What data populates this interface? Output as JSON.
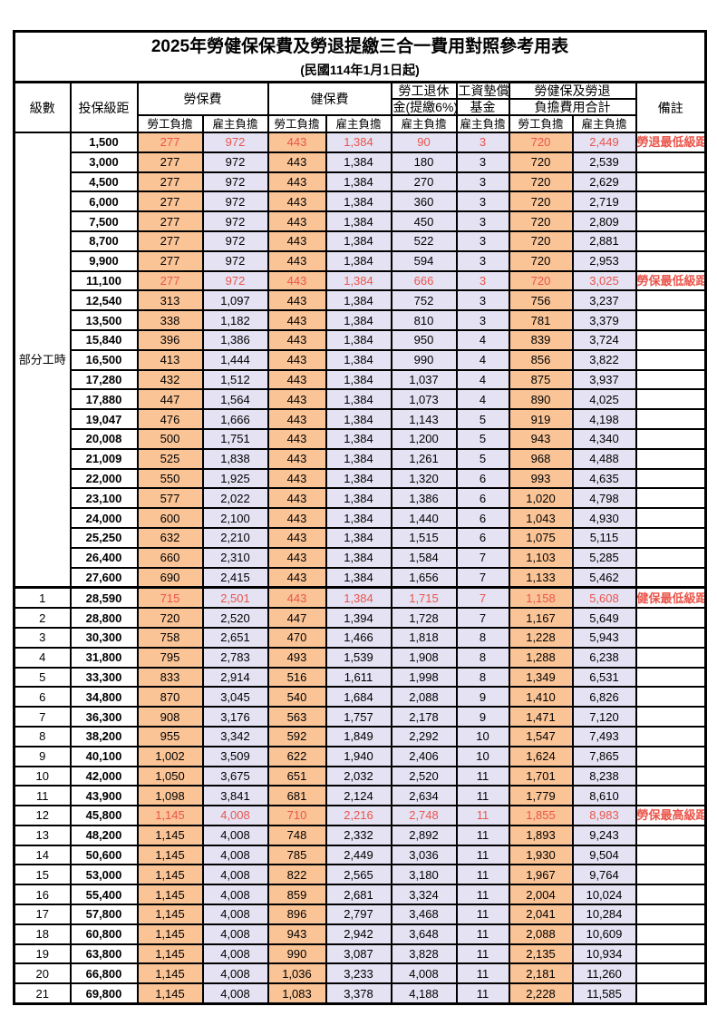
{
  "title": "2025年勞健保保費及勞退提繳三合一費用對照參考用表",
  "subtitle": "(民國114年1月1日起)",
  "colors": {
    "employee_bg": "#FAC496",
    "employer_bg": "#E4E2F3",
    "highlight_red": "#EB554B",
    "border": "#000000"
  },
  "header": {
    "level": "級數",
    "bracket": "投保級距",
    "labor_insurance": "勞保費",
    "health_insurance": "健保費",
    "pension_top": "勞工退休",
    "pension_bottom": "金(提繳6%)",
    "wage_fund_top": "工資墊償",
    "wage_fund_bottom": "基金",
    "total_top": "勞健保及勞退",
    "total_bottom": "負擔費用合計",
    "remark": "備註",
    "employee": "勞工負擔",
    "employer": "雇主負擔"
  },
  "part_time_label": "部分工時",
  "value_col_classes": [
    "emp",
    "er",
    "emp",
    "er",
    "er",
    "er",
    "emp",
    "er"
  ],
  "rows": [
    {
      "level": "",
      "bracket": "1,500",
      "v": [
        "277",
        "972",
        "443",
        "1,384",
        "90",
        "3",
        "720",
        "2,449"
      ],
      "remark": "勞退最低級距",
      "red": true
    },
    {
      "level": "",
      "bracket": "3,000",
      "v": [
        "277",
        "972",
        "443",
        "1,384",
        "180",
        "3",
        "720",
        "2,539"
      ],
      "remark": "",
      "red": false
    },
    {
      "level": "",
      "bracket": "4,500",
      "v": [
        "277",
        "972",
        "443",
        "1,384",
        "270",
        "3",
        "720",
        "2,629"
      ],
      "remark": "",
      "red": false
    },
    {
      "level": "",
      "bracket": "6,000",
      "v": [
        "277",
        "972",
        "443",
        "1,384",
        "360",
        "3",
        "720",
        "2,719"
      ],
      "remark": "",
      "red": false
    },
    {
      "level": "",
      "bracket": "7,500",
      "v": [
        "277",
        "972",
        "443",
        "1,384",
        "450",
        "3",
        "720",
        "2,809"
      ],
      "remark": "",
      "red": false
    },
    {
      "level": "",
      "bracket": "8,700",
      "v": [
        "277",
        "972",
        "443",
        "1,384",
        "522",
        "3",
        "720",
        "2,881"
      ],
      "remark": "",
      "red": false
    },
    {
      "level": "",
      "bracket": "9,900",
      "v": [
        "277",
        "972",
        "443",
        "1,384",
        "594",
        "3",
        "720",
        "2,953"
      ],
      "remark": "",
      "red": false
    },
    {
      "level": "",
      "bracket": "11,100",
      "v": [
        "277",
        "972",
        "443",
        "1,384",
        "666",
        "3",
        "720",
        "3,025"
      ],
      "remark": "勞保最低級距",
      "red": true
    },
    {
      "level": "",
      "bracket": "12,540",
      "v": [
        "313",
        "1,097",
        "443",
        "1,384",
        "752",
        "3",
        "756",
        "3,237"
      ],
      "remark": "",
      "red": false
    },
    {
      "level": "",
      "bracket": "13,500",
      "v": [
        "338",
        "1,182",
        "443",
        "1,384",
        "810",
        "3",
        "781",
        "3,379"
      ],
      "remark": "",
      "red": false
    },
    {
      "level": "",
      "bracket": "15,840",
      "v": [
        "396",
        "1,386",
        "443",
        "1,384",
        "950",
        "4",
        "839",
        "3,724"
      ],
      "remark": "",
      "red": false
    },
    {
      "level": "",
      "bracket": "16,500",
      "v": [
        "413",
        "1,444",
        "443",
        "1,384",
        "990",
        "4",
        "856",
        "3,822"
      ],
      "remark": "",
      "red": false
    },
    {
      "level": "",
      "bracket": "17,280",
      "v": [
        "432",
        "1,512",
        "443",
        "1,384",
        "1,037",
        "4",
        "875",
        "3,937"
      ],
      "remark": "",
      "red": false
    },
    {
      "level": "",
      "bracket": "17,880",
      "v": [
        "447",
        "1,564",
        "443",
        "1,384",
        "1,073",
        "4",
        "890",
        "4,025"
      ],
      "remark": "",
      "red": false
    },
    {
      "level": "",
      "bracket": "19,047",
      "v": [
        "476",
        "1,666",
        "443",
        "1,384",
        "1,143",
        "5",
        "919",
        "4,198"
      ],
      "remark": "",
      "red": false
    },
    {
      "level": "",
      "bracket": "20,008",
      "v": [
        "500",
        "1,751",
        "443",
        "1,384",
        "1,200",
        "5",
        "943",
        "4,340"
      ],
      "remark": "",
      "red": false
    },
    {
      "level": "",
      "bracket": "21,009",
      "v": [
        "525",
        "1,838",
        "443",
        "1,384",
        "1,261",
        "5",
        "968",
        "4,488"
      ],
      "remark": "",
      "red": false
    },
    {
      "level": "",
      "bracket": "22,000",
      "v": [
        "550",
        "1,925",
        "443",
        "1,384",
        "1,320",
        "6",
        "993",
        "4,635"
      ],
      "remark": "",
      "red": false
    },
    {
      "level": "",
      "bracket": "23,100",
      "v": [
        "577",
        "2,022",
        "443",
        "1,384",
        "1,386",
        "6",
        "1,020",
        "4,798"
      ],
      "remark": "",
      "red": false
    },
    {
      "level": "",
      "bracket": "24,000",
      "v": [
        "600",
        "2,100",
        "443",
        "1,384",
        "1,440",
        "6",
        "1,043",
        "4,930"
      ],
      "remark": "",
      "red": false
    },
    {
      "level": "",
      "bracket": "25,250",
      "v": [
        "632",
        "2,210",
        "443",
        "1,384",
        "1,515",
        "6",
        "1,075",
        "5,115"
      ],
      "remark": "",
      "red": false
    },
    {
      "level": "",
      "bracket": "26,400",
      "v": [
        "660",
        "2,310",
        "443",
        "1,384",
        "1,584",
        "7",
        "1,103",
        "5,285"
      ],
      "remark": "",
      "red": false
    },
    {
      "level": "",
      "bracket": "27,600",
      "v": [
        "690",
        "2,415",
        "443",
        "1,384",
        "1,656",
        "7",
        "1,133",
        "5,462"
      ],
      "remark": "",
      "red": false
    },
    {
      "level": "1",
      "bracket": "28,590",
      "v": [
        "715",
        "2,501",
        "443",
        "1,384",
        "1,715",
        "7",
        "1,158",
        "5,608"
      ],
      "remark": "健保最低級距",
      "red": true
    },
    {
      "level": "2",
      "bracket": "28,800",
      "v": [
        "720",
        "2,520",
        "447",
        "1,394",
        "1,728",
        "7",
        "1,167",
        "5,649"
      ],
      "remark": "",
      "red": false
    },
    {
      "level": "3",
      "bracket": "30,300",
      "v": [
        "758",
        "2,651",
        "470",
        "1,466",
        "1,818",
        "8",
        "1,228",
        "5,943"
      ],
      "remark": "",
      "red": false
    },
    {
      "level": "4",
      "bracket": "31,800",
      "v": [
        "795",
        "2,783",
        "493",
        "1,539",
        "1,908",
        "8",
        "1,288",
        "6,238"
      ],
      "remark": "",
      "red": false
    },
    {
      "level": "5",
      "bracket": "33,300",
      "v": [
        "833",
        "2,914",
        "516",
        "1,611",
        "1,998",
        "8",
        "1,349",
        "6,531"
      ],
      "remark": "",
      "red": false
    },
    {
      "level": "6",
      "bracket": "34,800",
      "v": [
        "870",
        "3,045",
        "540",
        "1,684",
        "2,088",
        "9",
        "1,410",
        "6,826"
      ],
      "remark": "",
      "red": false
    },
    {
      "level": "7",
      "bracket": "36,300",
      "v": [
        "908",
        "3,176",
        "563",
        "1,757",
        "2,178",
        "9",
        "1,471",
        "7,120"
      ],
      "remark": "",
      "red": false
    },
    {
      "level": "8",
      "bracket": "38,200",
      "v": [
        "955",
        "3,342",
        "592",
        "1,849",
        "2,292",
        "10",
        "1,547",
        "7,493"
      ],
      "remark": "",
      "red": false
    },
    {
      "level": "9",
      "bracket": "40,100",
      "v": [
        "1,002",
        "3,509",
        "622",
        "1,940",
        "2,406",
        "10",
        "1,624",
        "7,865"
      ],
      "remark": "",
      "red": false
    },
    {
      "level": "10",
      "bracket": "42,000",
      "v": [
        "1,050",
        "3,675",
        "651",
        "2,032",
        "2,520",
        "11",
        "1,701",
        "8,238"
      ],
      "remark": "",
      "red": false
    },
    {
      "level": "11",
      "bracket": "43,900",
      "v": [
        "1,098",
        "3,841",
        "681",
        "2,124",
        "2,634",
        "11",
        "1,779",
        "8,610"
      ],
      "remark": "",
      "red": false
    },
    {
      "level": "12",
      "bracket": "45,800",
      "v": [
        "1,145",
        "4,008",
        "710",
        "2,216",
        "2,748",
        "11",
        "1,855",
        "8,983"
      ],
      "remark": "勞保最高級距",
      "red": true
    },
    {
      "level": "13",
      "bracket": "48,200",
      "v": [
        "1,145",
        "4,008",
        "748",
        "2,332",
        "2,892",
        "11",
        "1,893",
        "9,243"
      ],
      "remark": "",
      "red": false
    },
    {
      "level": "14",
      "bracket": "50,600",
      "v": [
        "1,145",
        "4,008",
        "785",
        "2,449",
        "3,036",
        "11",
        "1,930",
        "9,504"
      ],
      "remark": "",
      "red": false
    },
    {
      "level": "15",
      "bracket": "53,000",
      "v": [
        "1,145",
        "4,008",
        "822",
        "2,565",
        "3,180",
        "11",
        "1,967",
        "9,764"
      ],
      "remark": "",
      "red": false
    },
    {
      "level": "16",
      "bracket": "55,400",
      "v": [
        "1,145",
        "4,008",
        "859",
        "2,681",
        "3,324",
        "11",
        "2,004",
        "10,024"
      ],
      "remark": "",
      "red": false
    },
    {
      "level": "17",
      "bracket": "57,800",
      "v": [
        "1,145",
        "4,008",
        "896",
        "2,797",
        "3,468",
        "11",
        "2,041",
        "10,284"
      ],
      "remark": "",
      "red": false
    },
    {
      "level": "18",
      "bracket": "60,800",
      "v": [
        "1,145",
        "4,008",
        "943",
        "2,942",
        "3,648",
        "11",
        "2,088",
        "10,609"
      ],
      "remark": "",
      "red": false
    },
    {
      "level": "19",
      "bracket": "63,800",
      "v": [
        "1,145",
        "4,008",
        "990",
        "3,087",
        "3,828",
        "11",
        "2,135",
        "10,934"
      ],
      "remark": "",
      "red": false
    },
    {
      "level": "20",
      "bracket": "66,800",
      "v": [
        "1,145",
        "4,008",
        "1,036",
        "3,233",
        "4,008",
        "11",
        "2,181",
        "11,260"
      ],
      "remark": "",
      "red": false
    },
    {
      "level": "21",
      "bracket": "69,800",
      "v": [
        "1,145",
        "4,008",
        "1,083",
        "3,378",
        "4,188",
        "11",
        "2,228",
        "11,585"
      ],
      "remark": "",
      "red": false
    }
  ]
}
